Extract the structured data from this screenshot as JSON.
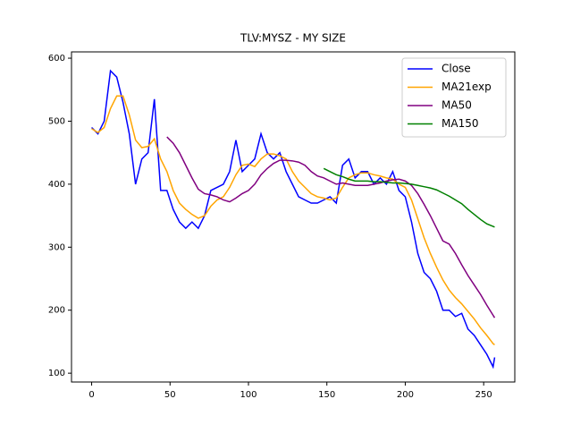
{
  "chart_data": {
    "type": "line",
    "title": "TLV:MYSZ - MY SIZE",
    "x": [
      0,
      4,
      8,
      12,
      16,
      20,
      24,
      28,
      32,
      36,
      40,
      44,
      48,
      52,
      56,
      60,
      64,
      68,
      72,
      76,
      80,
      84,
      88,
      92,
      96,
      100,
      104,
      108,
      112,
      116,
      120,
      124,
      128,
      132,
      136,
      140,
      144,
      148,
      152,
      156,
      160,
      164,
      168,
      172,
      176,
      180,
      184,
      188,
      192,
      196,
      200,
      204,
      208,
      212,
      216,
      220,
      224,
      228,
      232,
      236,
      240,
      244,
      248,
      252,
      256,
      257
    ],
    "series": [
      {
        "name": "Close",
        "color": "#0000ff",
        "values": [
          490,
          480,
          500,
          580,
          570,
          530,
          480,
          400,
          440,
          450,
          535,
          390,
          390,
          360,
          340,
          330,
          340,
          330,
          350,
          390,
          395,
          400,
          420,
          470,
          420,
          430,
          440,
          480,
          450,
          440,
          450,
          420,
          400,
          380,
          375,
          370,
          370,
          375,
          380,
          370,
          430,
          440,
          410,
          420,
          420,
          400,
          410,
          400,
          420,
          390,
          380,
          340,
          290,
          260,
          250,
          230,
          200,
          200,
          190,
          195,
          170,
          160,
          145,
          130,
          110,
          125
        ]
      },
      {
        "name": "MA21exp",
        "color": "#ffa500",
        "values": [
          488,
          482,
          490,
          520,
          540,
          540,
          510,
          470,
          458,
          460,
          472,
          440,
          420,
          390,
          370,
          360,
          352,
          346,
          350,
          365,
          375,
          380,
          395,
          415,
          430,
          432,
          428,
          440,
          448,
          448,
          445,
          440,
          420,
          405,
          395,
          385,
          380,
          378,
          375,
          378,
          395,
          410,
          415,
          418,
          418,
          415,
          413,
          410,
          408,
          400,
          395,
          375,
          345,
          315,
          290,
          268,
          248,
          232,
          220,
          210,
          198,
          186,
          172,
          160,
          147,
          145
        ]
      },
      {
        "name": "MA50",
        "color": "#800080",
        "values": [
          null,
          null,
          null,
          null,
          null,
          null,
          null,
          null,
          null,
          null,
          null,
          null,
          475,
          465,
          450,
          430,
          410,
          392,
          385,
          383,
          380,
          375,
          372,
          378,
          385,
          390,
          400,
          415,
          425,
          433,
          438,
          438,
          437,
          435,
          430,
          420,
          413,
          410,
          405,
          400,
          402,
          400,
          398,
          398,
          398,
          400,
          402,
          405,
          407,
          408,
          405,
          398,
          385,
          368,
          350,
          330,
          310,
          305,
          290,
          272,
          255,
          240,
          225,
          208,
          192,
          188
        ]
      },
      {
        "name": "MA150",
        "color": "#008000",
        "values": [
          null,
          null,
          null,
          null,
          null,
          null,
          null,
          null,
          null,
          null,
          null,
          null,
          null,
          null,
          null,
          null,
          null,
          null,
          null,
          null,
          null,
          null,
          null,
          null,
          null,
          null,
          null,
          null,
          null,
          null,
          null,
          null,
          null,
          null,
          null,
          null,
          null,
          425,
          420,
          415,
          412,
          408,
          405,
          405,
          405,
          404,
          404,
          403,
          402,
          402,
          401,
          400,
          398,
          396,
          394,
          391,
          386,
          381,
          375,
          369,
          360,
          352,
          344,
          337,
          333,
          332
        ]
      }
    ],
    "xlim": [
      -12.85,
      269.85
    ],
    "ylim": [
      86,
      610
    ],
    "xticks": [
      0,
      50,
      100,
      150,
      200,
      250
    ],
    "yticks": [
      100,
      200,
      300,
      400,
      500,
      600
    ],
    "legend": "upper right"
  }
}
